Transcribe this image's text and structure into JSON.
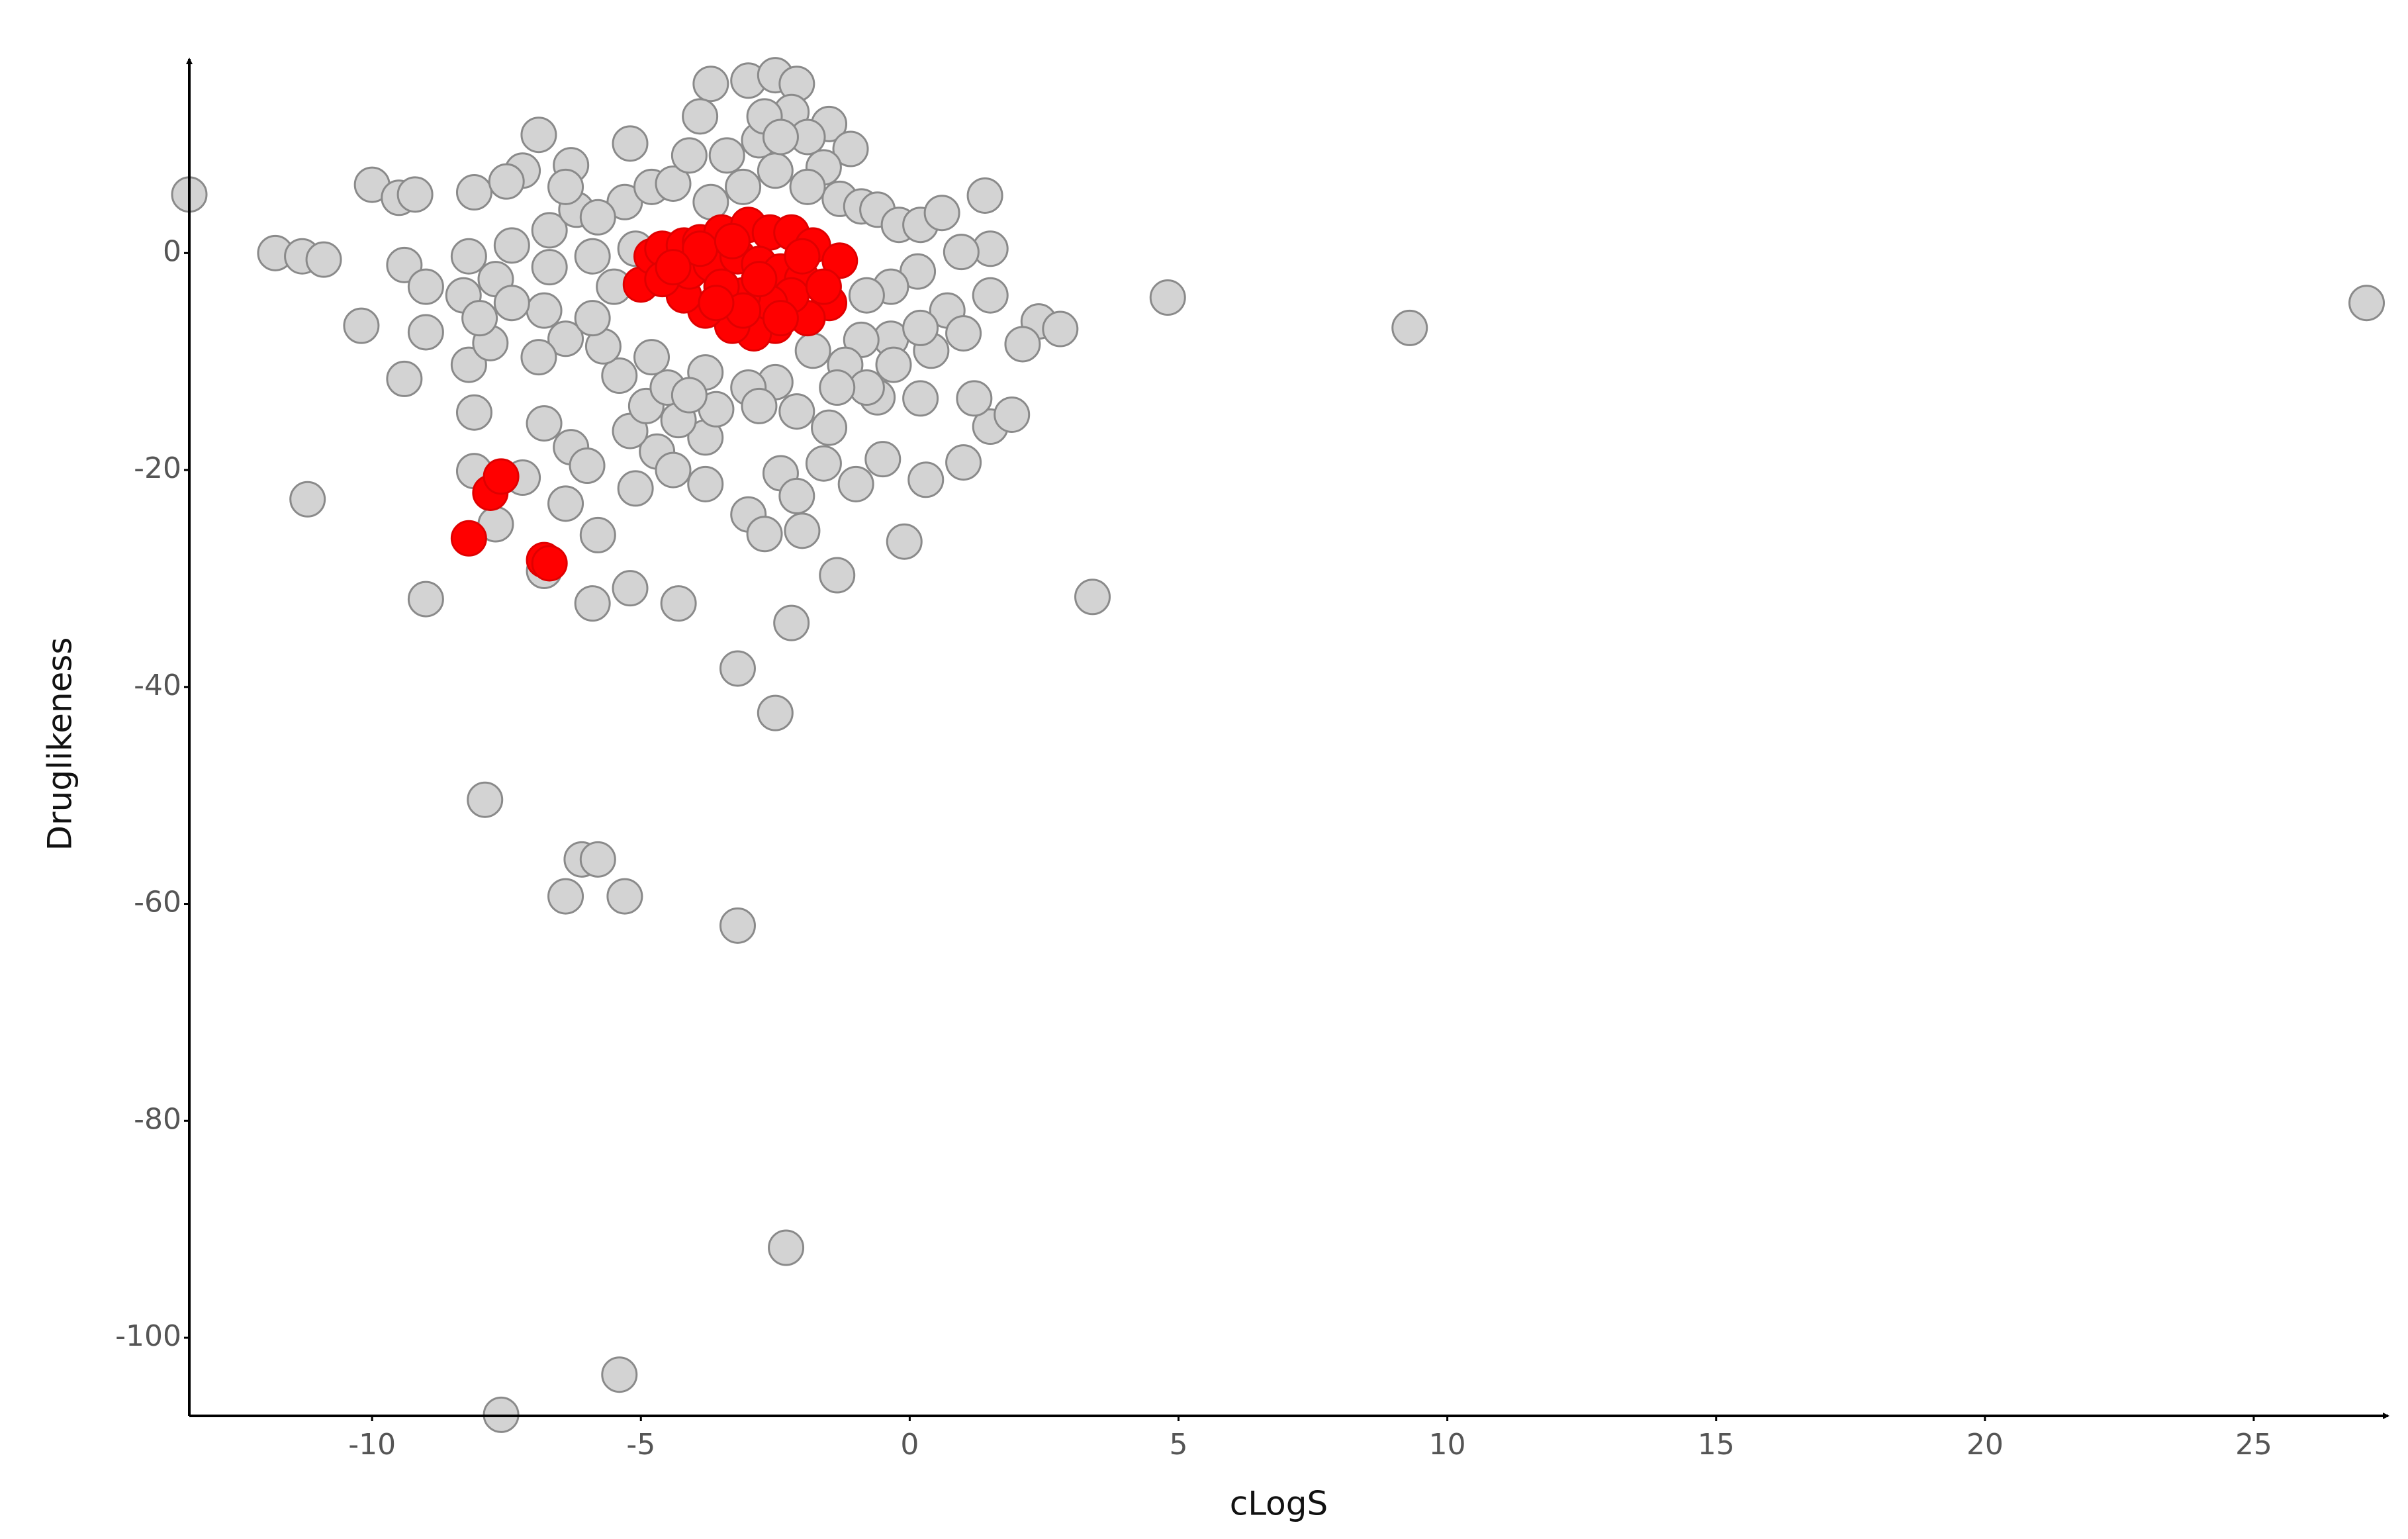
{
  "chart_data": {
    "type": "scatter",
    "xlabel": "cLogS",
    "ylabel": "Druglikeness",
    "xlim": [
      -13.4,
      27.5
    ],
    "ylim": [
      -107.2,
      17.9
    ],
    "xticks": [
      -10,
      -5,
      0,
      5,
      10,
      15,
      20,
      25
    ],
    "yticks": [
      -100,
      -80,
      -60,
      -40,
      -20,
      0
    ],
    "series": [
      {
        "color": "#d3d3d3",
        "edgecolor": "#8a8a8a",
        "x": [
          -13.4,
          -11.8,
          -11.3,
          -10.9,
          -10.2,
          -10,
          -9.5,
          -9.2,
          -9.4,
          -9.4,
          -9,
          -9,
          -11.2,
          -9,
          -8.1,
          -8.2,
          -8.1,
          -7.7,
          -7.9,
          -7.6,
          -5.4,
          -2.3,
          -3.2,
          -6.4,
          -6.1,
          -5.8,
          -5.3,
          -2.5,
          -3.2,
          -2.2,
          -4.3,
          -5.9,
          -5.2,
          -6.8,
          -1.35,
          -0.1,
          3.4,
          4.8,
          9.3,
          27.1,
          -6.8,
          -6.3,
          -6,
          -5.8,
          -6.4,
          -7.2,
          -5.1,
          -4.7,
          -4.4,
          -3.8,
          -3,
          -2.7,
          -2,
          -2.4,
          -2.1,
          -1.6,
          -1,
          -0.5,
          0.3,
          1,
          1.5,
          1.9,
          0.2,
          -0.6,
          -1.5,
          -3.8,
          -4.3,
          -5.2,
          -4.9,
          -3.7,
          -3,
          -2.5,
          -2.1,
          -3.9,
          -1.5,
          -6.9,
          -5.2,
          -1.1,
          -7.2,
          -8.1,
          -6.3,
          1.4,
          1.5,
          0.96,
          1.5,
          2.4,
          2.8,
          2.1,
          1.2,
          0.4,
          -0.35,
          -0.9,
          -1.2,
          -1.8,
          -2.5,
          -3,
          -3.8,
          -4.5,
          -5.4,
          -5.7,
          -6.4,
          -6.9,
          -7.8,
          -8.3,
          -8.2,
          -7.7,
          -7.4,
          -6.7,
          -6.7,
          -6.2,
          -5.9,
          -5.5,
          -5.3,
          -5.1,
          -4.8,
          -4.4,
          -4.1,
          -3.4,
          -2.8,
          -2.2,
          -1.9,
          -1.6,
          -1.3,
          -0.9,
          -0.6,
          -0.2,
          0.2,
          0.6,
          0.15,
          -0.35,
          -0.8,
          0.7,
          0.2,
          1,
          -0.3,
          -0.8,
          -1.35,
          -2.1,
          -2.8,
          -3.6,
          -4.1,
          -4.8,
          -5.9,
          -6.8,
          -7.4,
          -8,
          -7.5,
          -6.4,
          -5.8,
          -3.7,
          -3.1,
          -2.5,
          -1.9,
          -2.7,
          -2.4
        ],
        "values": [
          5.4,
          0,
          -0.3,
          -0.6,
          -6.7,
          6.3,
          5.1,
          5.4,
          -1.1,
          -11.6,
          -3.1,
          -7.3,
          -22.7,
          -31.9,
          -14.7,
          -10.3,
          -20.1,
          -25,
          -50.4,
          -107.1,
          -103.4,
          -91.7,
          -62,
          -59.3,
          -55.9,
          -55.9,
          -59.3,
          -42.4,
          -38.3,
          -34.1,
          -32.3,
          -32.3,
          -30.9,
          -29.3,
          -29.7,
          -26.6,
          -31.7,
          -4.1,
          -6.9,
          -4.6,
          -15.7,
          -17.9,
          -19.6,
          -26,
          -23.1,
          -20.7,
          -21.7,
          -18.3,
          -20,
          -21.3,
          -24.1,
          -25.9,
          -25.6,
          -20.3,
          -22.4,
          -19.4,
          -21.3,
          -19,
          -20.9,
          -19.3,
          -16,
          -14.9,
          -13.4,
          -13.3,
          -16.1,
          -17,
          -15.4,
          -16.4,
          -14.1,
          15.6,
          15.9,
          16.4,
          15.6,
          12.6,
          11.9,
          10.9,
          10.1,
          9.6,
          7.6,
          5.6,
          8.1,
          5.3,
          0.4,
          0.1,
          -3.9,
          -6.3,
          -7,
          -8.4,
          -13.4,
          -9,
          -7.9,
          -8,
          -10.3,
          -9,
          -11.9,
          -12.4,
          -11,
          -12.4,
          -11.3,
          -8.6,
          -7.9,
          -9.6,
          -8.3,
          -3.9,
          -0.3,
          -2.4,
          0.7,
          -1.3,
          2.1,
          4,
          -0.3,
          -3.1,
          4.7,
          0.4,
          6.1,
          6.4,
          9,
          9,
          10.4,
          13,
          10.7,
          7.9,
          5,
          4.3,
          4,
          2.6,
          2.6,
          3.7,
          -1.7,
          -3.1,
          -3.9,
          -5.3,
          -6.9,
          -7.4,
          -10.3,
          -12.4,
          -12.4,
          -14.6,
          -14.1,
          -14.4,
          -13.1,
          -9.6,
          -6,
          -5.3,
          -4.6,
          -6,
          6.6,
          6.1,
          3.3,
          4.7,
          6.1,
          7.6,
          6.1,
          12.6,
          10.7
        ]
      },
      {
        "color": "#ff0000",
        "edgecolor": "#e00000",
        "x": [
          -8.2,
          -7.8,
          -7.6,
          -6.8,
          -6.7,
          -5,
          -4.8,
          -4.6,
          -4.2,
          -3.9,
          -3.5,
          -3,
          -2.6,
          -2.2,
          -1.8,
          -1.3,
          -1.5,
          -1.9,
          -2.5,
          -2.9,
          -3.3,
          -3.8,
          -4.2,
          -4.6,
          -4.1,
          -3.7,
          -3.2,
          -2.8,
          -2.4,
          -2,
          -2.2,
          -2.6,
          -3.1,
          -3.5,
          -3.9,
          -4.4,
          -3.1,
          -2.4,
          -1.6,
          -2,
          -3.3,
          -2.8,
          -3.6
        ],
        "values": [
          -26.3,
          -22.1,
          -20.6,
          -28.3,
          -28.6,
          -2.9,
          -0.3,
          0.4,
          0.7,
          1,
          1.9,
          2.6,
          1.9,
          1.9,
          0.7,
          -0.7,
          -4.6,
          -6,
          -6.7,
          -7.4,
          -6.7,
          -5.3,
          -3.9,
          -2.4,
          -1.7,
          -1,
          -0.3,
          -1,
          -1.7,
          -2.4,
          -3.9,
          -4.6,
          -3.9,
          -3.1,
          0.4,
          -1.3,
          -5.3,
          -6,
          -3.1,
          -0.3,
          1.1,
          -2.4,
          -4.6
        ]
      }
    ]
  }
}
